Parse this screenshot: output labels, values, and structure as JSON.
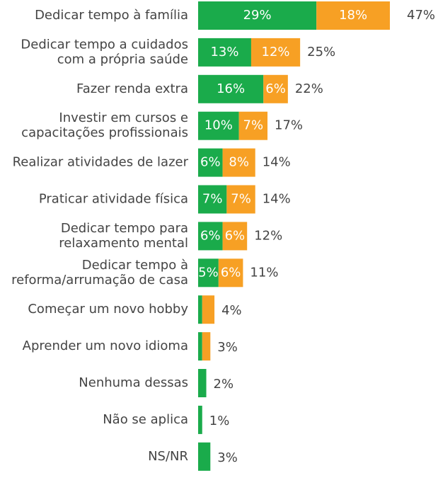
{
  "chart_data": {
    "type": "stacked-barh",
    "categories": [
      "Dedicar tempo à família",
      "Dedicar tempo a cuidados\ncom a própria saúde",
      "Fazer renda extra",
      "Investir em cursos e\ncapacitações profissionais",
      "Realizar atividades de lazer",
      "Praticar atividade física",
      "Dedicar tempo para\nrelaxamento mental",
      "Dedicar tempo à\nreforma/arrumação de casa",
      "Começar um novo hobby",
      "Aprender um novo idioma",
      "Nenhuma dessas",
      "Não se aplica",
      "NS/NR"
    ],
    "series": [
      {
        "color": "#1aab4b",
        "values": [
          29,
          13,
          16,
          10,
          6,
          7,
          6,
          5,
          1,
          1,
          2,
          1,
          3
        ],
        "value_labels": [
          "29%",
          "13%",
          "16%",
          "10%",
          "6%",
          "7%",
          "6%",
          "5%",
          null,
          null,
          null,
          null,
          null
        ]
      },
      {
        "color": "#f7a024",
        "values": [
          18,
          12,
          6,
          7,
          8,
          7,
          6,
          6,
          3,
          2,
          0,
          0,
          0
        ],
        "value_labels": [
          "18%",
          "12%",
          "6%",
          "7%",
          "8%",
          "7%",
          "6%",
          "6%",
          null,
          null,
          null,
          null,
          null
        ]
      }
    ],
    "totals": [
      47,
      25,
      22,
      17,
      14,
      14,
      12,
      11,
      4,
      3,
      2,
      1,
      3
    ],
    "total_labels": [
      "47%",
      "25%",
      "22%",
      "17%",
      "14%",
      "14%",
      "12%",
      "11%",
      "4%",
      "3%",
      "2%",
      "1%",
      "3%"
    ]
  }
}
